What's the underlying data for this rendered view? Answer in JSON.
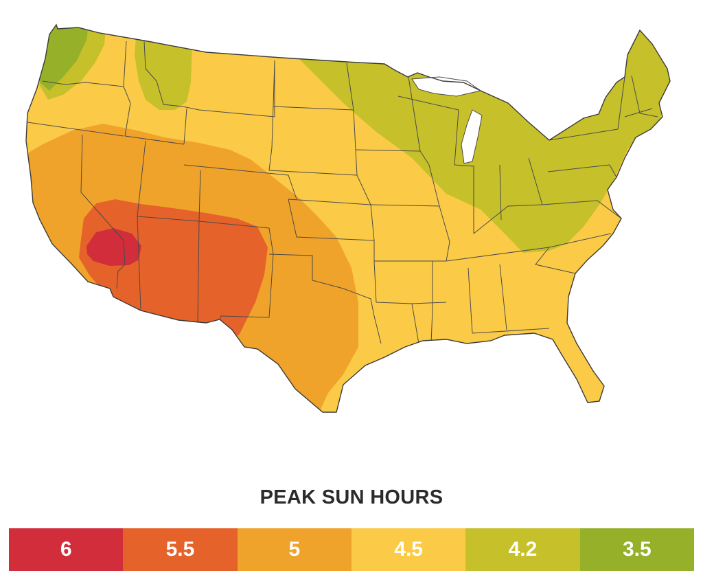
{
  "legend": {
    "title": "PEAK SUN HOURS",
    "items": [
      {
        "label": "6",
        "color": "#d12d3a"
      },
      {
        "label": "5.5",
        "color": "#e5622a"
      },
      {
        "label": "5",
        "color": "#f0a32b"
      },
      {
        "label": "4.5",
        "color": "#fbcb47"
      },
      {
        "label": "4.2",
        "color": "#c6c02a"
      },
      {
        "label": "3.5",
        "color": "#96b02a"
      }
    ]
  }
}
